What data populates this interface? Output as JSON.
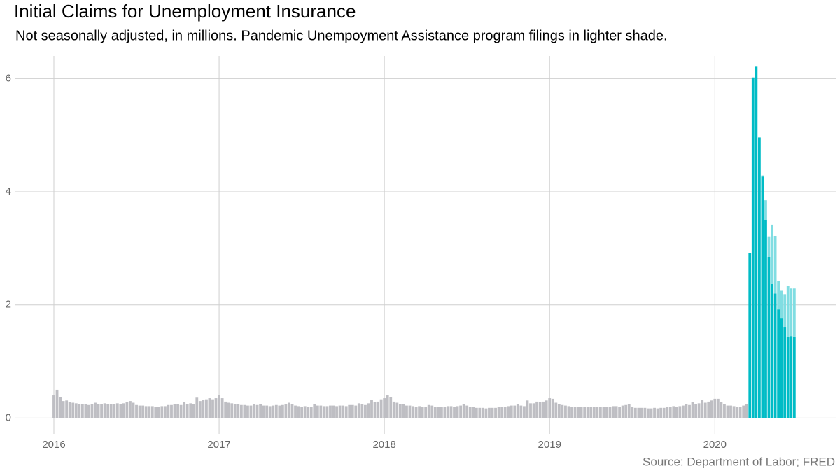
{
  "chart_data": {
    "type": "bar",
    "title": "Initial Claims for Unemployment Insurance",
    "subtitle": "Not seasonally adjusted, in millions. Pandemic Unempoyment Assistance program filings in lighter shade.",
    "source": "Source: Department of Labor; FRED",
    "stacked": true,
    "grid": true,
    "ylim": [
      -0.28,
      6.4
    ],
    "yticks": [
      0,
      2,
      4,
      6
    ],
    "categories": [
      "2016",
      null,
      null,
      null,
      null,
      null,
      null,
      null,
      null,
      null,
      null,
      null,
      null,
      null,
      null,
      null,
      null,
      null,
      null,
      null,
      null,
      null,
      null,
      null,
      null,
      null,
      null,
      null,
      null,
      null,
      null,
      null,
      null,
      null,
      null,
      null,
      null,
      null,
      null,
      null,
      null,
      null,
      null,
      null,
      null,
      null,
      null,
      null,
      null,
      null,
      null,
      null,
      "2017",
      null,
      null,
      null,
      null,
      null,
      null,
      null,
      null,
      null,
      null,
      null,
      null,
      null,
      null,
      null,
      null,
      null,
      null,
      null,
      null,
      null,
      null,
      null,
      null,
      null,
      null,
      null,
      null,
      null,
      null,
      null,
      null,
      null,
      null,
      null,
      null,
      null,
      null,
      null,
      null,
      null,
      null,
      null,
      null,
      null,
      null,
      null,
      null,
      null,
      null,
      null,
      "2018",
      null,
      null,
      null,
      null,
      null,
      null,
      null,
      null,
      null,
      null,
      null,
      null,
      null,
      null,
      null,
      null,
      null,
      null,
      null,
      null,
      null,
      null,
      null,
      null,
      null,
      null,
      null,
      null,
      null,
      null,
      null,
      null,
      null,
      null,
      null,
      null,
      null,
      null,
      null,
      null,
      null,
      null,
      null,
      null,
      null,
      null,
      null,
      null,
      null,
      null,
      null,
      "2019",
      null,
      null,
      null,
      null,
      null,
      null,
      null,
      null,
      null,
      null,
      null,
      null,
      null,
      null,
      null,
      null,
      null,
      null,
      null,
      null,
      null,
      null,
      null,
      null,
      null,
      null,
      null,
      null,
      null,
      null,
      null,
      null,
      null,
      null,
      null,
      null,
      null,
      null,
      null,
      null,
      null,
      null,
      null,
      null,
      null,
      null,
      null,
      null,
      null,
      null,
      null,
      "2020",
      null,
      null,
      null,
      null,
      null,
      null,
      null,
      null,
      null,
      null,
      null,
      null,
      null,
      null,
      null,
      null,
      null,
      null,
      null,
      null,
      null,
      null,
      null,
      null,
      null
    ],
    "series": [
      {
        "color": "#bebec3",
        "values": [
          0.4,
          0.5,
          0.37,
          0.3,
          0.31,
          0.28,
          0.27,
          0.26,
          0.25,
          0.25,
          0.24,
          0.23,
          0.24,
          0.27,
          0.25,
          0.25,
          0.26,
          0.25,
          0.25,
          0.24,
          0.26,
          0.25,
          0.26,
          0.28,
          0.3,
          0.27,
          0.23,
          0.22,
          0.22,
          0.21,
          0.21,
          0.21,
          0.2,
          0.2,
          0.21,
          0.21,
          0.23,
          0.23,
          0.24,
          0.25,
          0.23,
          0.28,
          0.24,
          0.26,
          0.24,
          0.36,
          0.3,
          0.32,
          0.33,
          0.35,
          0.33,
          0.35,
          0.41,
          0.35,
          0.29,
          0.27,
          0.26,
          0.24,
          0.24,
          0.23,
          0.23,
          0.22,
          0.22,
          0.24,
          0.23,
          0.24,
          0.22,
          0.22,
          0.21,
          0.22,
          0.23,
          0.22,
          0.23,
          0.25,
          0.27,
          0.25,
          0.22,
          0.21,
          0.2,
          0.21,
          0.2,
          0.19,
          0.24,
          0.22,
          0.22,
          0.21,
          0.21,
          0.22,
          0.22,
          0.21,
          0.22,
          0.22,
          0.21,
          0.23,
          0.23,
          0.22,
          0.26,
          0.25,
          0.23,
          0.26,
          0.32,
          0.28,
          0.29,
          0.33,
          0.35,
          0.4,
          0.37,
          0.29,
          0.27,
          0.25,
          0.24,
          0.22,
          0.22,
          0.21,
          0.2,
          0.21,
          0.2,
          0.2,
          0.23,
          0.22,
          0.2,
          0.19,
          0.2,
          0.2,
          0.21,
          0.21,
          0.2,
          0.21,
          0.22,
          0.25,
          0.22,
          0.19,
          0.19,
          0.18,
          0.18,
          0.18,
          0.17,
          0.18,
          0.18,
          0.18,
          0.19,
          0.19,
          0.2,
          0.21,
          0.22,
          0.22,
          0.24,
          0.22,
          0.21,
          0.31,
          0.26,
          0.26,
          0.29,
          0.28,
          0.29,
          0.31,
          0.35,
          0.34,
          0.27,
          0.25,
          0.23,
          0.22,
          0.21,
          0.2,
          0.2,
          0.2,
          0.19,
          0.19,
          0.2,
          0.2,
          0.2,
          0.19,
          0.2,
          0.19,
          0.19,
          0.19,
          0.21,
          0.21,
          0.2,
          0.22,
          0.23,
          0.24,
          0.2,
          0.18,
          0.18,
          0.18,
          0.18,
          0.17,
          0.17,
          0.18,
          0.17,
          0.18,
          0.18,
          0.19,
          0.19,
          0.21,
          0.2,
          0.21,
          0.22,
          0.24,
          0.23,
          0.28,
          0.25,
          0.26,
          0.32,
          0.27,
          0.29,
          0.31,
          0.34,
          0.34,
          0.28,
          0.24,
          0.22,
          0.22,
          0.21,
          0.2,
          0.2,
          0.22,
          0.25,
          null,
          null,
          null,
          null,
          null,
          null,
          null,
          null,
          null,
          null,
          null,
          null,
          null,
          null,
          null
        ]
      },
      {
        "color": "#00bcc6",
        "values": [
          null,
          null,
          null,
          null,
          null,
          null,
          null,
          null,
          null,
          null,
          null,
          null,
          null,
          null,
          null,
          null,
          null,
          null,
          null,
          null,
          null,
          null,
          null,
          null,
          null,
          null,
          null,
          null,
          null,
          null,
          null,
          null,
          null,
          null,
          null,
          null,
          null,
          null,
          null,
          null,
          null,
          null,
          null,
          null,
          null,
          null,
          null,
          null,
          null,
          null,
          null,
          null,
          null,
          null,
          null,
          null,
          null,
          null,
          null,
          null,
          null,
          null,
          null,
          null,
          null,
          null,
          null,
          null,
          null,
          null,
          null,
          null,
          null,
          null,
          null,
          null,
          null,
          null,
          null,
          null,
          null,
          null,
          null,
          null,
          null,
          null,
          null,
          null,
          null,
          null,
          null,
          null,
          null,
          null,
          null,
          null,
          null,
          null,
          null,
          null,
          null,
          null,
          null,
          null,
          null,
          null,
          null,
          null,
          null,
          null,
          null,
          null,
          null,
          null,
          null,
          null,
          null,
          null,
          null,
          null,
          null,
          null,
          null,
          null,
          null,
          null,
          null,
          null,
          null,
          null,
          null,
          null,
          null,
          null,
          null,
          null,
          null,
          null,
          null,
          null,
          null,
          null,
          null,
          null,
          null,
          null,
          null,
          null,
          null,
          null,
          null,
          null,
          null,
          null,
          null,
          null,
          null,
          null,
          null,
          null,
          null,
          null,
          null,
          null,
          null,
          null,
          null,
          null,
          null,
          null,
          null,
          null,
          null,
          null,
          null,
          null,
          null,
          null,
          null,
          null,
          null,
          null,
          null,
          null,
          null,
          null,
          null,
          null,
          null,
          null,
          null,
          null,
          null,
          null,
          null,
          null,
          null,
          null,
          null,
          null,
          null,
          null,
          null,
          null,
          null,
          null,
          null,
          null,
          null,
          null,
          null,
          null,
          null,
          null,
          null,
          null,
          null,
          null,
          null,
          2.92,
          6.02,
          6.21,
          4.96,
          4.27,
          3.5,
          2.84,
          2.37,
          2.2,
          1.92,
          1.76,
          1.6,
          1.43,
          1.45,
          1.44
        ]
      },
      {
        "color": "#80dde2",
        "values": [
          null,
          null,
          null,
          null,
          null,
          null,
          null,
          null,
          null,
          null,
          null,
          null,
          null,
          null,
          null,
          null,
          null,
          null,
          null,
          null,
          null,
          null,
          null,
          null,
          null,
          null,
          null,
          null,
          null,
          null,
          null,
          null,
          null,
          null,
          null,
          null,
          null,
          null,
          null,
          null,
          null,
          null,
          null,
          null,
          null,
          null,
          null,
          null,
          null,
          null,
          null,
          null,
          null,
          null,
          null,
          null,
          null,
          null,
          null,
          null,
          null,
          null,
          null,
          null,
          null,
          null,
          null,
          null,
          null,
          null,
          null,
          null,
          null,
          null,
          null,
          null,
          null,
          null,
          null,
          null,
          null,
          null,
          null,
          null,
          null,
          null,
          null,
          null,
          null,
          null,
          null,
          null,
          null,
          null,
          null,
          null,
          null,
          null,
          null,
          null,
          null,
          null,
          null,
          null,
          null,
          null,
          null,
          null,
          null,
          null,
          null,
          null,
          null,
          null,
          null,
          null,
          null,
          null,
          null,
          null,
          null,
          null,
          null,
          null,
          null,
          null,
          null,
          null,
          null,
          null,
          null,
          null,
          null,
          null,
          null,
          null,
          null,
          null,
          null,
          null,
          null,
          null,
          null,
          null,
          null,
          null,
          null,
          null,
          null,
          null,
          null,
          null,
          null,
          null,
          null,
          null,
          null,
          null,
          null,
          null,
          null,
          null,
          null,
          null,
          null,
          null,
          null,
          null,
          null,
          null,
          null,
          null,
          null,
          null,
          null,
          null,
          null,
          null,
          null,
          null,
          null,
          null,
          null,
          null,
          null,
          null,
          null,
          null,
          null,
          null,
          null,
          null,
          null,
          null,
          null,
          null,
          null,
          null,
          null,
          null,
          null,
          null,
          null,
          null,
          null,
          null,
          null,
          null,
          null,
          null,
          null,
          null,
          null,
          null,
          null,
          null,
          null,
          null,
          null,
          null,
          null,
          null,
          null,
          0.02,
          0.35,
          0.36,
          1.05,
          1.02,
          0.5,
          0.49,
          0.59,
          0.9,
          0.84,
          0.85
        ]
      }
    ]
  }
}
